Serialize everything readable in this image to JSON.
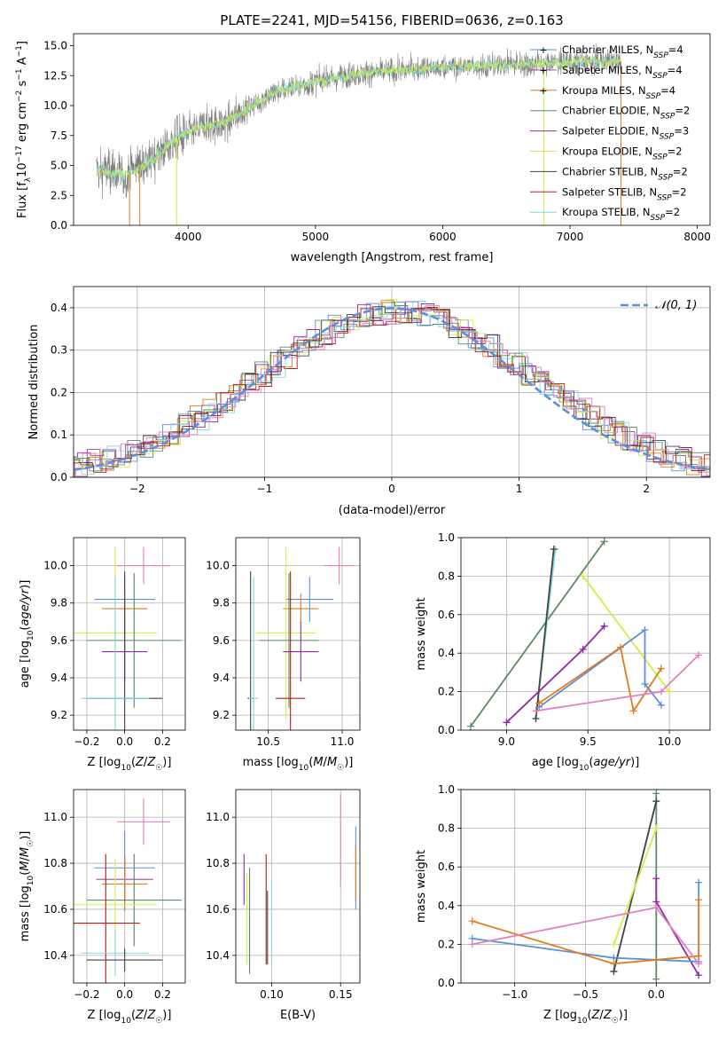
{
  "figure": {
    "title": "PLATE=2241, MJD=54156, FIBERID=0636, z=0.163"
  },
  "colors": {
    "Chabrier MILES": "#5b8fdc",
    "Salpeter MILES": "#9a4b94",
    "Kroupa MILES": "#e07b22",
    "Chabrier ELODIE": "#5a8a66",
    "Salpeter ELODIE": "#8e2aa6",
    "Kroupa ELODIE": "#d4ec4a",
    "Chabrier STELIB": "#444444",
    "Salpeter STELIB": "#b01d1d",
    "Kroupa STELIB": "#7fd8dd",
    "pink": "#e47fbd",
    "data": "#808080"
  },
  "chart_data": [
    {
      "id": "spectrum",
      "type": "line",
      "xlabel": "wavelength [Angstrom, rest frame]",
      "ylabel_html": "Flux [f<tspan baseline-shift='sub' font-size='9'>λ</tspan>10<tspan baseline-shift='super' font-size='9'>−17</tspan> erg cm<tspan baseline-shift='super' font-size='9'>−2</tspan> s<tspan baseline-shift='super' font-size='9'>−1</tspan> A<tspan baseline-shift='super' font-size='9'>−1</tspan>]",
      "xlim": [
        3100,
        8100
      ],
      "ylim": [
        0,
        16
      ],
      "xticks": [
        4000,
        5000,
        6000,
        7000,
        8000
      ],
      "yticks": [
        0.0,
        2.5,
        5.0,
        7.5,
        10.0,
        12.5,
        15.0
      ],
      "grid": false,
      "legend_position": "top-right",
      "legend": [
        {
          "name": "Chabrier MILES",
          "nssp": 4
        },
        {
          "name": "Salpeter MILES",
          "nssp": 4
        },
        {
          "name": "Kroupa MILES",
          "nssp": 4
        },
        {
          "name": "Chabrier ELODIE",
          "nssp": 2
        },
        {
          "name": "Salpeter ELODIE",
          "nssp": 3
        },
        {
          "name": "Kroupa ELODIE",
          "nssp": 2
        },
        {
          "name": "Chabrier STELIB",
          "nssp": 2
        },
        {
          "name": "Salpeter STELIB",
          "nssp": 2
        },
        {
          "name": "Kroupa STELIB",
          "nssp": 2
        }
      ],
      "continuum_x": [
        3280,
        3500,
        3700,
        3900,
        4100,
        4300,
        4500,
        4700,
        5000,
        5300,
        5500,
        6000,
        6500,
        7000,
        7400
      ],
      "continuum_y": [
        4.6,
        4.2,
        5.3,
        7.2,
        8.2,
        8.6,
        10.0,
        11.2,
        12.0,
        12.6,
        12.8,
        13.2,
        13.4,
        13.6,
        13.7
      ]
    },
    {
      "id": "residuals",
      "type": "histogram",
      "xlabel": "(data-model)/error",
      "ylabel": "Normed distribution",
      "xlim": [
        -2.5,
        2.5
      ],
      "ylim": [
        0,
        0.45
      ],
      "xticks": [
        -2,
        -1,
        0,
        1,
        2
      ],
      "yticks": [
        0.0,
        0.1,
        0.2,
        0.3,
        0.4
      ],
      "grid": true,
      "legend_position": "top-right",
      "legend_label": "𝒩(0, 1)",
      "bin_width": 0.1,
      "reference_curve": "normal(0,1)"
    },
    {
      "id": "age_vs_Z",
      "type": "errorbar",
      "xlabel": "Z [log10(Z/Z☉)]",
      "ylabel": "age  [log10(age/yr)]",
      "xlim": [
        -0.27,
        0.32
      ],
      "ylim": [
        9.12,
        10.15
      ],
      "xticks": [
        -0.2,
        0.0,
        0.2
      ],
      "yticks": [
        9.2,
        9.4,
        9.6,
        9.8,
        10.0
      ],
      "grid": true,
      "points": [
        {
          "color": "pink",
          "x": 0.1,
          "xerr": 0.14,
          "y": 10.0,
          "yerr": 0.1
        },
        {
          "color": "Chabrier MILES",
          "x": 0.0,
          "xerr": 0.16,
          "y": 9.82,
          "yerr": 0.12
        },
        {
          "color": "Kroupa MILES",
          "x": 0.0,
          "xerr": 0.12,
          "y": 9.77,
          "yerr": 0.08
        },
        {
          "color": "Kroupa ELODIE",
          "x": -0.05,
          "xerr": 0.22,
          "y": 9.64,
          "yerr": 0.46
        },
        {
          "color": "Chabrier ELODIE",
          "x": 0.05,
          "xerr": 0.25,
          "y": 9.6,
          "yerr": 0.36
        },
        {
          "color": "Salpeter ELODIE",
          "x": 0.0,
          "xerr": 0.12,
          "y": 9.54,
          "yerr": 0.16
        },
        {
          "color": "Chabrier STELIB",
          "x": 0.0,
          "xerr": 0.2,
          "y": 9.29,
          "yerr": 0.68
        },
        {
          "color": "Kroupa STELIB",
          "x": -0.05,
          "xerr": 0.18,
          "y": 9.29,
          "yerr": 0.65
        }
      ]
    },
    {
      "id": "age_vs_mass",
      "type": "errorbar",
      "xlabel": "mass [log10(M/M☉)]",
      "xlim": [
        10.28,
        11.12
      ],
      "ylim": [
        9.12,
        10.15
      ],
      "xticks": [
        10.5,
        11.0
      ],
      "yticks": [
        9.2,
        9.4,
        9.6,
        9.8,
        10.0
      ],
      "grid": true,
      "points": [
        {
          "color": "pink",
          "x": 10.98,
          "xerr": 0.1,
          "y": 10.0,
          "yerr": 0.1
        },
        {
          "color": "Chabrier MILES",
          "x": 10.78,
          "xerr": 0.16,
          "y": 9.82,
          "yerr": 0.12
        },
        {
          "color": "Kroupa MILES",
          "x": 10.72,
          "xerr": 0.12,
          "y": 9.77,
          "yerr": 0.08
        },
        {
          "color": "Kroupa ELODIE",
          "x": 10.62,
          "xerr": 0.2,
          "y": 9.64,
          "yerr": 0.46
        },
        {
          "color": "Chabrier ELODIE",
          "x": 10.64,
          "xerr": 0.2,
          "y": 9.6,
          "yerr": 0.36
        },
        {
          "color": "Salpeter ELODIE",
          "x": 10.72,
          "xerr": 0.12,
          "y": 9.54,
          "yerr": 0.16
        },
        {
          "color": "Salpeter STELIB",
          "x": 10.65,
          "xerr": 0.1,
          "y": 9.29,
          "yerr": 0.68
        },
        {
          "color": "Chabrier STELIB",
          "x": 10.38,
          "xerr": 0.02,
          "y": 9.29,
          "yerr": 0.68
        },
        {
          "color": "Kroupa STELIB",
          "x": 10.4,
          "xerr": 0.03,
          "y": 9.29,
          "yerr": 0.65
        }
      ]
    },
    {
      "id": "weight_vs_age",
      "type": "line",
      "xlabel": "age  [log10(age/yr)]",
      "ylabel": "mass weight",
      "xlim": [
        8.72,
        10.25
      ],
      "ylim": [
        0,
        1
      ],
      "xticks": [
        9.0,
        9.5,
        10.0
      ],
      "yticks": [
        0.0,
        0.2,
        0.4,
        0.6,
        0.8,
        1.0
      ],
      "grid": true,
      "series": [
        {
          "color": "Chabrier ELODIE",
          "x": [
            8.78,
            9.6
          ],
          "y": [
            0.02,
            0.98
          ]
        },
        {
          "color": "Kroupa STELIB",
          "x": [
            9.18,
            9.3
          ],
          "y": [
            0.06,
            0.94
          ]
        },
        {
          "color": "Chabrier STELIB",
          "x": [
            9.18,
            9.29
          ],
          "y": [
            0.06,
            0.94
          ]
        },
        {
          "color": "Kroupa ELODIE",
          "x": [
            9.47,
            10.0
          ],
          "y": [
            0.8,
            0.2
          ]
        },
        {
          "color": "Salpeter ELODIE",
          "x": [
            9.0,
            9.47,
            9.6
          ],
          "y": [
            0.04,
            0.42,
            0.54
          ]
        },
        {
          "color": "Chabrier MILES",
          "x": [
            9.2,
            9.85,
            9.85,
            9.95
          ],
          "y": [
            0.12,
            0.52,
            0.24,
            0.13
          ]
        },
        {
          "color": "Kroupa MILES",
          "x": [
            9.2,
            9.7,
            9.78,
            9.95
          ],
          "y": [
            0.14,
            0.43,
            0.1,
            0.32
          ]
        },
        {
          "color": "pink",
          "x": [
            9.18,
            9.95,
            10.18
          ],
          "y": [
            0.1,
            0.2,
            0.39
          ]
        }
      ]
    },
    {
      "id": "mass_vs_Z",
      "type": "errorbar",
      "xlabel": "Z [log10(Z/Z☉)]",
      "ylabel": "mass [log10(M/M☉)]",
      "xlim": [
        -0.27,
        0.32
      ],
      "ylim": [
        10.28,
        11.12
      ],
      "xticks": [
        -0.2,
        0.0,
        0.2
      ],
      "yticks": [
        10.4,
        10.6,
        10.8,
        11.0
      ],
      "grid": true,
      "points": [
        {
          "color": "pink",
          "x": 0.1,
          "xerr": 0.14,
          "y": 10.98,
          "yerr": 0.1
        },
        {
          "color": "Chabrier MILES",
          "x": 0.0,
          "xerr": 0.16,
          "y": 10.78,
          "yerr": 0.16
        },
        {
          "color": "Salpeter MILES",
          "x": 0.0,
          "xerr": 0.15,
          "y": 10.73,
          "yerr": 0.1
        },
        {
          "color": "Kroupa MILES",
          "x": 0.0,
          "xerr": 0.12,
          "y": 10.71,
          "yerr": 0.12
        },
        {
          "color": "Chabrier ELODIE",
          "x": 0.05,
          "xerr": 0.25,
          "y": 10.64,
          "yerr": 0.2
        },
        {
          "color": "Kroupa ELODIE",
          "x": -0.05,
          "xerr": 0.22,
          "y": 10.62,
          "yerr": 0.2
        },
        {
          "color": "Salpeter STELIB",
          "x": -0.1,
          "xerr": 0.18,
          "y": 10.54,
          "yerr": 0.3
        },
        {
          "color": "Kroupa STELIB",
          "x": -0.05,
          "xerr": 0.18,
          "y": 10.41,
          "yerr": 0.1
        },
        {
          "color": "Chabrier STELIB",
          "x": 0.0,
          "xerr": 0.2,
          "y": 10.38,
          "yerr": 0.05
        }
      ]
    },
    {
      "id": "mass_vs_EBV",
      "type": "errorbar",
      "xlabel": "E(B-V)",
      "xlim": [
        0.074,
        0.164
      ],
      "ylim": [
        10.28,
        11.12
      ],
      "xticks": [
        0.1,
        0.15
      ],
      "yticks": [
        10.4,
        10.6,
        10.8,
        11.0
      ],
      "grid": true,
      "points": [
        {
          "color": "pink",
          "x": 0.15,
          "xerr": 0,
          "y": 10.9,
          "yerr": 0.2
        },
        {
          "color": "Chabrier MILES",
          "x": 0.161,
          "xerr": 0,
          "y": 10.78,
          "yerr": 0.18
        },
        {
          "color": "Kroupa MILES",
          "x": 0.161,
          "xerr": 0,
          "y": 10.76,
          "yerr": 0.12
        },
        {
          "color": "Salpeter ELODIE",
          "x": 0.08,
          "xerr": 0,
          "y": 10.73,
          "yerr": 0.11
        },
        {
          "color": "Kroupa ELODIE",
          "x": 0.082,
          "xerr": 0,
          "y": 10.56,
          "yerr": 0.2
        },
        {
          "color": "Chabrier ELODIE",
          "x": 0.084,
          "xerr": 0,
          "y": 10.55,
          "yerr": 0.23
        },
        {
          "color": "Salpeter STELIB",
          "x": 0.096,
          "xerr": 0,
          "y": 10.6,
          "yerr": 0.24
        },
        {
          "color": "Chabrier STELIB",
          "x": 0.097,
          "xerr": 0,
          "y": 10.52,
          "yerr": 0.16
        },
        {
          "color": "Kroupa STELIB",
          "x": 0.1,
          "xerr": 0,
          "y": 10.55,
          "yerr": 0.18
        }
      ]
    },
    {
      "id": "weight_vs_Z",
      "type": "line",
      "xlabel": "Z [log10(Z/Z☉)]",
      "ylabel": "mass weight",
      "xlim": [
        -1.38,
        0.38
      ],
      "ylim": [
        0,
        1
      ],
      "xticks": [
        -1.0,
        -0.5,
        0.0
      ],
      "yticks": [
        0.0,
        0.2,
        0.4,
        0.6,
        0.8,
        1.0
      ],
      "grid": true,
      "series": [
        {
          "color": "Chabrier ELODIE",
          "x": [
            0.0,
            0.0
          ],
          "y": [
            0.02,
            0.98
          ]
        },
        {
          "color": "Kroupa STELIB",
          "x": [
            -0.3,
            0.0
          ],
          "y": [
            0.06,
            0.94
          ]
        },
        {
          "color": "Chabrier STELIB",
          "x": [
            -0.3,
            0.0
          ],
          "y": [
            0.06,
            0.94
          ]
        },
        {
          "color": "Kroupa ELODIE",
          "x": [
            -0.3,
            0.0
          ],
          "y": [
            0.2,
            0.8
          ]
        },
        {
          "color": "Salpeter ELODIE",
          "x": [
            0.0,
            0.0,
            0.3
          ],
          "y": [
            0.54,
            0.42,
            0.04
          ]
        },
        {
          "color": "Chabrier MILES",
          "x": [
            -1.3,
            -0.3,
            0.3,
            0.3
          ],
          "y": [
            0.23,
            0.13,
            0.11,
            0.52
          ]
        },
        {
          "color": "Kroupa MILES",
          "x": [
            -1.3,
            -0.3,
            0.3,
            0.3
          ],
          "y": [
            0.32,
            0.1,
            0.14,
            0.43
          ]
        },
        {
          "color": "pink",
          "x": [
            -1.3,
            0.0,
            0.3
          ],
          "y": [
            0.2,
            0.39,
            0.1
          ]
        }
      ]
    }
  ]
}
